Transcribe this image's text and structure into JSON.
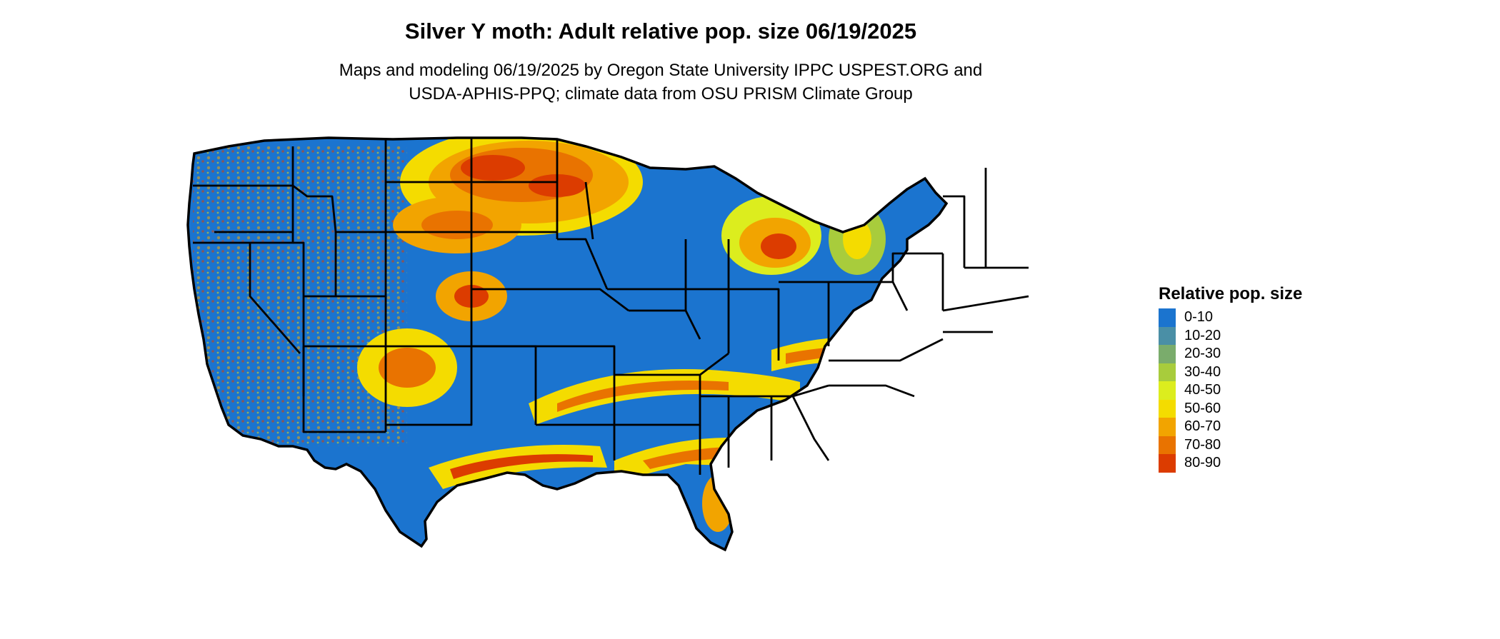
{
  "header": {
    "title": "Silver Y moth: Adult relative pop. size 06/19/2025",
    "subtitle_line1": "Maps and modeling 06/19/2025 by Oregon State University IPPC USPEST.ORG and",
    "subtitle_line2": "USDA-APHIS-PPQ; climate data from OSU PRISM Climate Group"
  },
  "legend": {
    "title": "Relative pop. size",
    "items": [
      {
        "label": "0-10",
        "color": "#1b74cf"
      },
      {
        "label": "10-20",
        "color": "#4a8fa6"
      },
      {
        "label": "20-30",
        "color": "#7aac6c"
      },
      {
        "label": "30-40",
        "color": "#a8cc3c"
      },
      {
        "label": "40-50",
        "color": "#dced1e"
      },
      {
        "label": "50-60",
        "color": "#f4dc00"
      },
      {
        "label": "60-70",
        "color": "#f2a400"
      },
      {
        "label": "70-80",
        "color": "#e97300"
      },
      {
        "label": "80-90",
        "color": "#dc3c00"
      }
    ]
  },
  "map": {
    "background_class": "0-10",
    "hotspot_classes": [
      "50-60",
      "60-70",
      "70-80",
      "80-90"
    ]
  }
}
